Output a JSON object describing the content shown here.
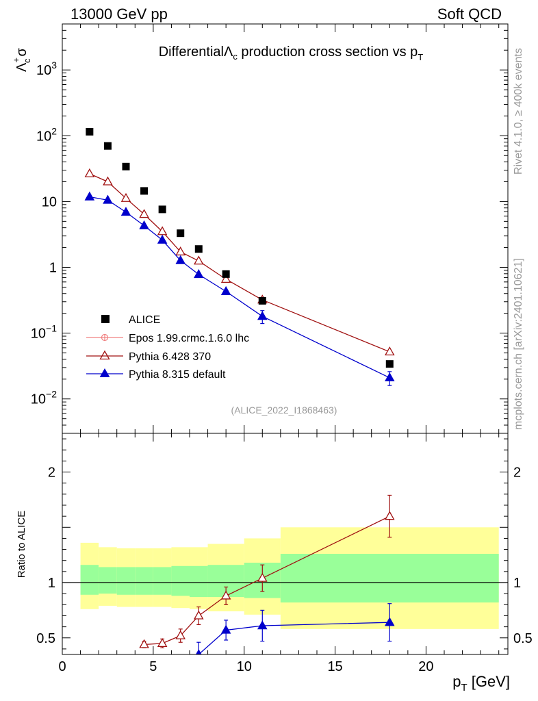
{
  "header": {
    "energy_label": "13000 GeV pp",
    "category_label": "Soft QCD"
  },
  "side_labels": {
    "rivet": "Rivet 4.1.0, ≥ 400k events",
    "mcplots": "mcplots.cern.ch [arXiv:2401.10621]"
  },
  "chart_data": [
    {
      "type": "scatter",
      "panel": "main",
      "title_main": "Differential",
      "title_tail": " production cross section vs p",
      "title_tail_sub": "T",
      "ylabel_lambda": "Λ",
      "ylabel_sup": "+",
      "ylabel_sub": "c",
      "ylabel_sigma": "σ",
      "yscale": "log",
      "ylim": [
        0.003,
        5000
      ],
      "xlim": [
        0,
        24.5
      ],
      "ytick_labels": [
        {
          "value": 0.01,
          "base": "10",
          "exp": "−2"
        },
        {
          "value": 0.1,
          "base": "10",
          "exp": "−1"
        },
        {
          "value": 1,
          "base": "1",
          "exp": ""
        },
        {
          "value": 10,
          "base": "10",
          "exp": ""
        },
        {
          "value": 100,
          "base": "10",
          "exp": "2"
        },
        {
          "value": 1000,
          "base": "10",
          "exp": "3"
        }
      ],
      "analysis_tag": "(ALICE_2022_I1868463)",
      "series": [
        {
          "name": "ALICE",
          "color": "#000000",
          "marker": "square",
          "x": [
            1.5,
            2.5,
            3.5,
            4.5,
            5.5,
            6.5,
            7.5,
            9,
            11,
            18
          ],
          "y": [
            115,
            70,
            34,
            14.5,
            7.6,
            3.3,
            1.9,
            0.79,
            0.31,
            0.034
          ]
        },
        {
          "name": "Epos 1.99.crmc.1.6.0 lhc",
          "color": "#f08080",
          "marker": "cross",
          "x": [],
          "y": []
        },
        {
          "name": "Pythia 6.428 370",
          "color": "#a01010",
          "marker": "open-triangle",
          "x": [
            1.5,
            2.5,
            3.5,
            4.5,
            5.5,
            6.5,
            7.5,
            9,
            11,
            18
          ],
          "y": [
            26.5,
            20,
            11.2,
            6.4,
            3.5,
            1.72,
            1.25,
            0.66,
            0.32,
            0.052
          ]
        },
        {
          "name": "Pythia 8.315 default",
          "color": "#0000cc",
          "marker": "filled-triangle",
          "x": [
            1.5,
            2.5,
            3.5,
            4.5,
            5.5,
            6.5,
            7.5,
            9,
            11,
            18
          ],
          "y": [
            11.8,
            10.5,
            6.9,
            4.3,
            2.6,
            1.27,
            0.78,
            0.43,
            0.18,
            0.021
          ],
          "yerr": [
            0,
            0,
            0,
            0,
            0,
            0,
            0,
            0,
            0.04,
            0.005
          ]
        }
      ]
    },
    {
      "type": "scatter",
      "panel": "ratio",
      "ylabel": "Ratio to ALICE",
      "xlabel_main": "p",
      "xlabel_sub": "T",
      "xlabel_unit": " [GeV]",
      "xlim": [
        0,
        24.5
      ],
      "ylim": [
        0.35,
        2.35
      ],
      "xticks": [
        0,
        5,
        10,
        15,
        20
      ],
      "yticks": [
        0.5,
        1,
        2
      ],
      "reference_line": 1,
      "bands": [
        {
          "x0": 1,
          "x1": 2,
          "inner": [
            0.89,
            1.16
          ],
          "outer": [
            0.76,
            1.36
          ]
        },
        {
          "x0": 2,
          "x1": 3,
          "inner": [
            0.9,
            1.14
          ],
          "outer": [
            0.79,
            1.32
          ]
        },
        {
          "x0": 3,
          "x1": 4,
          "inner": [
            0.89,
            1.14
          ],
          "outer": [
            0.78,
            1.31
          ]
        },
        {
          "x0": 4,
          "x1": 5,
          "inner": [
            0.89,
            1.14
          ],
          "outer": [
            0.78,
            1.31
          ]
        },
        {
          "x0": 5,
          "x1": 6,
          "inner": [
            0.89,
            1.14
          ],
          "outer": [
            0.78,
            1.31
          ]
        },
        {
          "x0": 6,
          "x1": 7,
          "inner": [
            0.88,
            1.15
          ],
          "outer": [
            0.77,
            1.32
          ]
        },
        {
          "x0": 7,
          "x1": 8,
          "inner": [
            0.87,
            1.15
          ],
          "outer": [
            0.76,
            1.32
          ]
        },
        {
          "x0": 8,
          "x1": 10,
          "inner": [
            0.87,
            1.16
          ],
          "outer": [
            0.74,
            1.35
          ]
        },
        {
          "x0": 10,
          "x1": 12,
          "inner": [
            0.86,
            1.18
          ],
          "outer": [
            0.71,
            1.4
          ]
        },
        {
          "x0": 12,
          "x1": 24,
          "inner": [
            0.82,
            1.26
          ],
          "outer": [
            0.58,
            1.5
          ]
        }
      ],
      "series": [
        {
          "name": "Pythia 6.428 370",
          "color": "#a01010",
          "marker": "open-triangle",
          "x": [
            4.5,
            5.5,
            6.5,
            7.5,
            9,
            11,
            18
          ],
          "y": [
            0.44,
            0.45,
            0.52,
            0.7,
            0.88,
            1.04,
            1.6
          ],
          "yerr": [
            0.03,
            0.04,
            0.06,
            0.08,
            0.08,
            0.12,
            0.19
          ]
        },
        {
          "name": "Pythia 8.315 default",
          "color": "#0000cc",
          "marker": "filled-triangle",
          "x": [
            7.5,
            9,
            11,
            18
          ],
          "y": [
            0.35,
            0.57,
            0.61,
            0.64
          ],
          "yerr": [
            0.11,
            0.09,
            0.14,
            0.17
          ]
        }
      ]
    }
  ]
}
